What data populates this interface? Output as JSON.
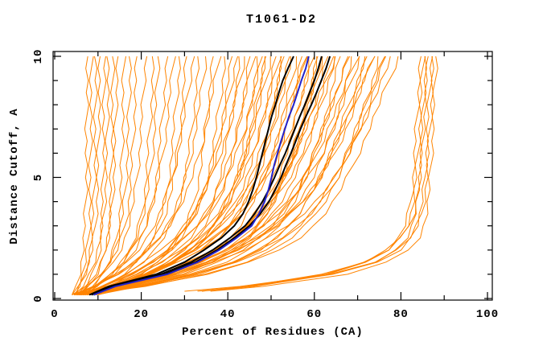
{
  "figure": {
    "background": "#ffffff"
  },
  "chart_data": {
    "type": "line",
    "title": "T1061-D2",
    "xlabel": "Percent of Residues (CA)",
    "ylabel": "Distance Cutoff, A",
    "xlim": [
      0,
      101.5
    ],
    "ylim": [
      0,
      10.2
    ],
    "grid": false,
    "legend": "none",
    "x_ticks": {
      "major": [
        0,
        20,
        40,
        60,
        80,
        100
      ],
      "minor_step": 10,
      "max": 100
    },
    "y_ticks": {
      "major": [
        0,
        5,
        10
      ],
      "minor_step": 1,
      "max": 10
    },
    "colors": {
      "ensemble": "#ff8400",
      "selected": "#000000",
      "special": "#2222cc"
    },
    "cutoffs": [
      0.15,
      0.5,
      1,
      1.5,
      2,
      2.5,
      3,
      3.5,
      4,
      4.5,
      5,
      5.5,
      6,
      6.5,
      7,
      7.5,
      8,
      8.5,
      9,
      9.5,
      10
    ],
    "highlighted_series": [
      {
        "name": "black-model-1",
        "color_key": "selected",
        "width": 2,
        "percents": [
          8,
          12.5,
          23.5,
          30,
          34.5,
          38.5,
          41.5,
          43.5,
          44.8,
          45.8,
          46.6,
          47.3,
          48,
          48.7,
          49.4,
          50.1,
          51,
          51.8,
          52.7,
          53.9,
          55.2
        ]
      },
      {
        "name": "black-model-2",
        "color_key": "selected",
        "width": 2,
        "percents": [
          8.5,
          13,
          24.5,
          31.5,
          36.5,
          40.5,
          44,
          46.2,
          48,
          49.5,
          50.8,
          52,
          53.3,
          54.4,
          55.5,
          56.6,
          57.8,
          58.9,
          60,
          60.9,
          61.7
        ]
      },
      {
        "name": "black-model-3",
        "color_key": "selected",
        "width": 2,
        "percents": [
          9,
          13.5,
          25.5,
          32.5,
          37.5,
          41.5,
          45,
          47.5,
          49.5,
          51,
          52.3,
          53.4,
          54.6,
          55.7,
          56.8,
          58,
          59.3,
          60.5,
          61.6,
          62.7,
          63.6
        ]
      },
      {
        "name": "blue-model",
        "color_key": "special",
        "width": 2,
        "percents": [
          9,
          14,
          26,
          33,
          38,
          42,
          45.5,
          47.2,
          48.5,
          49.4,
          50.1,
          50.7,
          51.5,
          52.3,
          53.2,
          54.1,
          55.2,
          56.1,
          57,
          58,
          58.7
        ]
      }
    ],
    "ensemble_model": {
      "formula": "x(y) = x0 + (xt-x0)*((1-w)*(1-exp(-(y-ys)/tau))/(1-exp(-(10-ys)/tau)) + w*(y-ys)/(10-ys))",
      "param_names": [
        "x0",
        "xt",
        "tau",
        "w",
        "ys"
      ],
      "default_ys": 0.15
    },
    "ensemble_params": [
      [
        4,
        7.5,
        1.2,
        0.1
      ],
      [
        4.5,
        8.5,
        1.0,
        0.12
      ],
      [
        5,
        9.5,
        1.4,
        0.08
      ],
      [
        4,
        10.5,
        1.1,
        0.15
      ],
      [
        5.5,
        11.5,
        0.9,
        0.1
      ],
      [
        4.5,
        12.5,
        1.3,
        0.12
      ],
      [
        6,
        13.5,
        1.0,
        0.1
      ],
      [
        5,
        14.5,
        1.2,
        0.15
      ],
      [
        6.5,
        16,
        1.1,
        0.1
      ],
      [
        5.5,
        17.5,
        1.3,
        0.12
      ],
      [
        4,
        19,
        1.2,
        0.15
      ],
      [
        6,
        21,
        1.5,
        0.2
      ],
      [
        4.5,
        23,
        1.1,
        0.18
      ],
      [
        7,
        24,
        1.6,
        0.15
      ],
      [
        5,
        26,
        1.3,
        0.2
      ],
      [
        6.5,
        27.5,
        1.8,
        0.22
      ],
      [
        4,
        29,
        1.2,
        0.18
      ],
      [
        7.5,
        30.5,
        1.5,
        0.2
      ],
      [
        5.5,
        32,
        1.9,
        0.25
      ],
      [
        6,
        33.5,
        1.4,
        0.2
      ],
      [
        4.5,
        35,
        1.7,
        0.22
      ],
      [
        8,
        36.5,
        1.3,
        0.18
      ],
      [
        5,
        38,
        2.0,
        0.25
      ],
      [
        7,
        39.5,
        1.5,
        0.2
      ],
      [
        5.5,
        41,
        1.6,
        0.22
      ],
      [
        8,
        42,
        1.9,
        0.25
      ],
      [
        4.5,
        43,
        1.4,
        0.2
      ],
      [
        6.5,
        44,
        2.1,
        0.28
      ],
      [
        9,
        45,
        1.6,
        0.22
      ],
      [
        5,
        46,
        1.8,
        0.25
      ],
      [
        7.5,
        47,
        1.5,
        0.2
      ],
      [
        6,
        48,
        2.0,
        0.26
      ],
      [
        8.5,
        48.5,
        1.7,
        0.22
      ],
      [
        4.5,
        49,
        1.4,
        0.24
      ],
      [
        7,
        50,
        1.9,
        0.25
      ],
      [
        5.5,
        51,
        1.6,
        0.22
      ],
      [
        9.5,
        52,
        2.1,
        0.27
      ],
      [
        6.5,
        52.5,
        1.5,
        0.2
      ],
      [
        8,
        53,
        1.8,
        0.24
      ],
      [
        5,
        54,
        1.6,
        0.22
      ],
      [
        7.5,
        55,
        2.0,
        0.26
      ],
      [
        6,
        56,
        1.7,
        0.23
      ],
      [
        9,
        57,
        1.5,
        0.21
      ],
      [
        5.5,
        58,
        1.9,
        0.25
      ],
      [
        8.5,
        59,
        1.6,
        0.22
      ],
      [
        7,
        60,
        2.1,
        0.27
      ],
      [
        6,
        60.5,
        1.5,
        0.2
      ],
      [
        10,
        61,
        1.8,
        0.24
      ],
      [
        5,
        62,
        1.7,
        0.23
      ],
      [
        8,
        63,
        1.9,
        0.25
      ],
      [
        6.5,
        64,
        1.6,
        0.22
      ],
      [
        9,
        65,
        2.0,
        0.26
      ],
      [
        5.5,
        66,
        1.5,
        0.21
      ],
      [
        7.5,
        67.5,
        1.8,
        0.24
      ],
      [
        6,
        69,
        1.6,
        0.22
      ],
      [
        8.5,
        70.5,
        2.0,
        0.26
      ],
      [
        5,
        72,
        1.7,
        0.23
      ],
      [
        7,
        73.5,
        1.9,
        0.25
      ],
      [
        9.5,
        75,
        1.6,
        0.22
      ],
      [
        6.5,
        76.5,
        1.8,
        0.24
      ],
      [
        5,
        58,
        1.0,
        0.35
      ],
      [
        6,
        62,
        1.1,
        0.3
      ],
      [
        4.5,
        65,
        0.9,
        0.38
      ],
      [
        7,
        68,
        1.2,
        0.32
      ],
      [
        5.5,
        70,
        1.0,
        0.35
      ],
      [
        6.5,
        72,
        1.15,
        0.3
      ],
      [
        5,
        74,
        0.95,
        0.36
      ],
      [
        7.5,
        76,
        1.25,
        0.3
      ],
      [
        6,
        78,
        1.05,
        0.33
      ],
      [
        5.5,
        79.5,
        1.1,
        0.3
      ],
      [
        33,
        84.5,
        0.75,
        0.06,
        0.3
      ],
      [
        36,
        85.2,
        0.8,
        0.06,
        0.35
      ],
      [
        30,
        85.8,
        0.7,
        0.05,
        0.3
      ],
      [
        38,
        86.3,
        0.85,
        0.07,
        0.35
      ],
      [
        34,
        87,
        0.75,
        0.05,
        0.3
      ],
      [
        40,
        87.6,
        0.8,
        0.06,
        0.4
      ],
      [
        36,
        88.2,
        0.7,
        0.05,
        0.3
      ]
    ]
  }
}
